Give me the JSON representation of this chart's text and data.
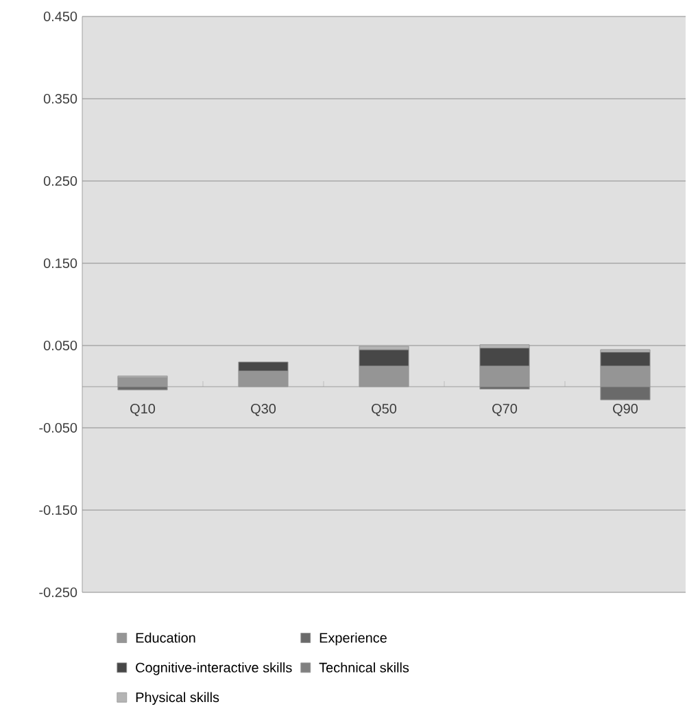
{
  "chart_data": {
    "type": "bar",
    "stacked": true,
    "categories": [
      "Q10",
      "Q30",
      "Q50",
      "Q70",
      "Q90"
    ],
    "series": [
      {
        "name": "Education",
        "color": "#959595",
        "values": [
          0.011,
          0.019,
          0.025,
          0.025,
          0.025
        ]
      },
      {
        "name": "Experience",
        "color": "#6a6a6a",
        "values": [
          -0.004,
          0,
          0,
          -0.003,
          -0.016
        ]
      },
      {
        "name": "Cognitive-interactive skills",
        "color": "#474747",
        "values": [
          0,
          0.011,
          0.02,
          0.022,
          0.017
        ]
      },
      {
        "name": "Technical skills",
        "color": "#808080",
        "values": [
          0,
          0,
          0,
          0,
          0
        ]
      },
      {
        "name": "Physical skills",
        "color": "#b4b4b4",
        "values": [
          0.002,
          0,
          0.004,
          0.004,
          0.003
        ]
      }
    ],
    "ylim": [
      -0.25,
      0.45
    ],
    "yticks": [
      {
        "value": -0.25,
        "label": "-0.250"
      },
      {
        "value": -0.15,
        "label": "-0.150"
      },
      {
        "value": -0.05,
        "label": "-0.050"
      },
      {
        "value": 0.05,
        "label": "0.050"
      },
      {
        "value": 0.15,
        "label": "0.150"
      },
      {
        "value": 0.25,
        "label": "0.250"
      },
      {
        "value": 0.35,
        "label": "0.350"
      },
      {
        "value": 0.45,
        "label": "0.450"
      }
    ],
    "grid": "y",
    "legend": "bottom"
  }
}
